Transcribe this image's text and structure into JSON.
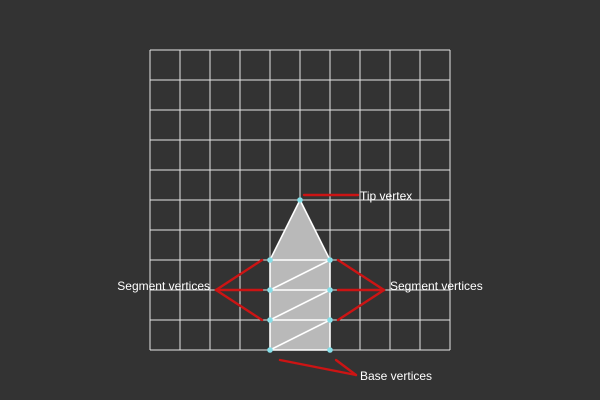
{
  "colors": {
    "background": "#333333",
    "grid": "#e6e6e6",
    "mesh_fill": "#b9b9b9",
    "edge": "#ffffff",
    "vertex": "#86dfe8",
    "callout": "#cc1414",
    "label_text": "#ffffff"
  },
  "grid": {
    "columns": 10,
    "rows": 10
  },
  "mesh": {
    "vertices": [
      {
        "id": "tip",
        "col": 5,
        "row": 5
      },
      {
        "id": "s1l",
        "col": 4,
        "row": 7
      },
      {
        "id": "s1r",
        "col": 6,
        "row": 7
      },
      {
        "id": "s2l",
        "col": 4,
        "row": 8
      },
      {
        "id": "s2r",
        "col": 6,
        "row": 8
      },
      {
        "id": "s3l",
        "col": 4,
        "row": 9
      },
      {
        "id": "s3r",
        "col": 6,
        "row": 9
      },
      {
        "id": "b_l",
        "col": 4,
        "row": 10
      },
      {
        "id": "b_r",
        "col": 6,
        "row": 10
      }
    ],
    "edges": [
      [
        "tip",
        "s1l"
      ],
      [
        "tip",
        "s1r"
      ],
      [
        "s1l",
        "s1r"
      ],
      [
        "s1r",
        "s2l"
      ],
      [
        "s2l",
        "s2r"
      ],
      [
        "s2r",
        "s3l"
      ],
      [
        "s3l",
        "s3r"
      ],
      [
        "s3r",
        "b_l"
      ],
      [
        "b_l",
        "b_r"
      ],
      [
        "s1l",
        "s2l"
      ],
      [
        "s2l",
        "s3l"
      ],
      [
        "s3l",
        "b_l"
      ],
      [
        "s1r",
        "s2r"
      ],
      [
        "s2r",
        "s3r"
      ],
      [
        "s3r",
        "b_r"
      ]
    ]
  },
  "labels": {
    "tip": "Tip vertex",
    "segment_left": "Segment vertices",
    "segment_right": "Segment vertices",
    "base": "Base vertices"
  }
}
